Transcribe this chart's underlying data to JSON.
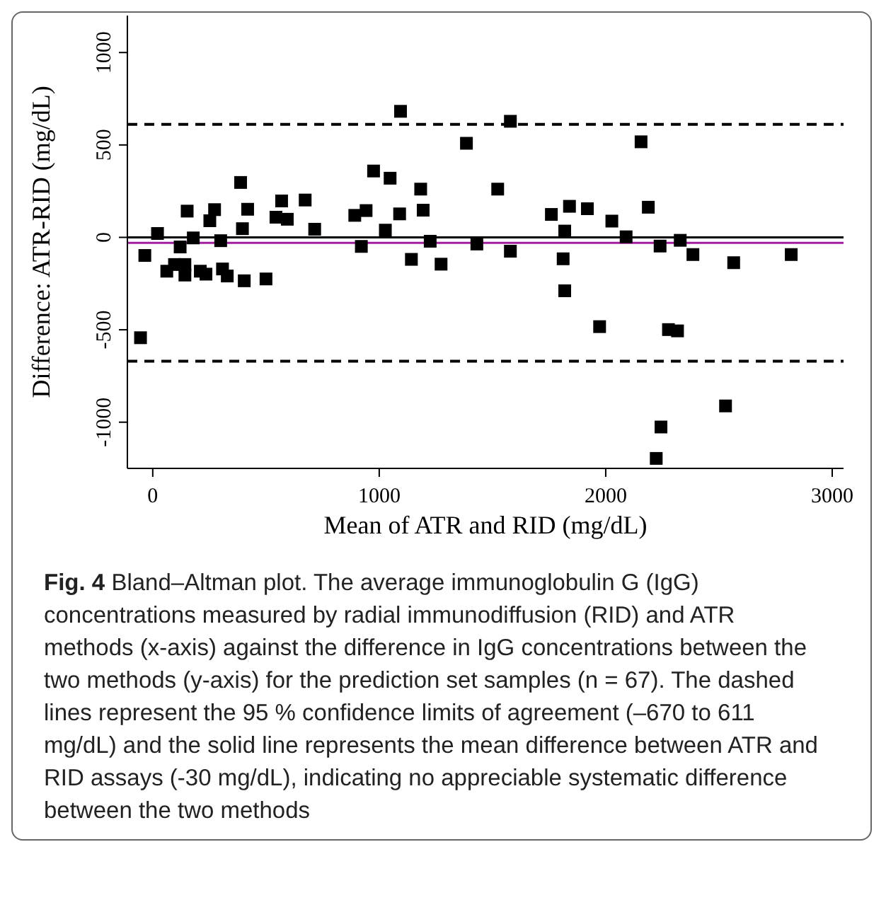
{
  "chart_data": {
    "type": "scatter",
    "xlabel": "Mean of ATR and RID (mg/dL)",
    "ylabel": "Difference: ATR-RID (mg/dL)",
    "xlim": [
      -112,
      3050
    ],
    "ylim": [
      -1250,
      1200
    ],
    "xticks": [
      0,
      1000,
      2000,
      3000
    ],
    "yticks": [
      -1000,
      -500,
      0,
      500,
      1000
    ],
    "marker": "square",
    "grid": false,
    "series": [
      {
        "color": "#000000",
        "x": [
          -54,
          -35,
          21,
          62,
          96,
          121,
          142,
          142,
          152,
          179,
          210,
          235,
          252,
          273,
          300,
          308,
          329,
          388,
          396,
          404,
          419,
          500,
          544,
          569,
          594,
          673,
          715,
          892,
          921,
          942,
          975,
          1027,
          1048,
          1090,
          1094,
          1142,
          1183,
          1194,
          1225,
          1273,
          1385,
          1431,
          1523,
          1579,
          1579,
          1760,
          1819,
          1812,
          1819,
          1840,
          1919,
          1973,
          2027,
          2090,
          2156,
          2188,
          2223,
          2240,
          2244,
          2277,
          2317,
          2329,
          2385,
          2529,
          2565,
          2819
        ],
        "values": [
          -543,
          -98,
          21,
          -183,
          -147,
          -52,
          -147,
          -204,
          142,
          -3,
          -183,
          -199,
          90,
          150,
          -18,
          -171,
          -209,
          297,
          47,
          -235,
          152,
          -225,
          109,
          197,
          98,
          202,
          44,
          119,
          -49,
          145,
          359,
          39,
          320,
          127,
          682,
          -119,
          261,
          147,
          -21,
          -145,
          509,
          -36,
          261,
          628,
          -75,
          124,
          34,
          -116,
          -289,
          168,
          155,
          -483,
          88,
          3,
          517,
          163,
          -1196,
          -47,
          -1026,
          -499,
          -506,
          -16,
          -93,
          -912,
          -137,
          -93
        ]
      }
    ],
    "ref_lines": [
      {
        "axis": "y",
        "value": 611,
        "color": "#000000",
        "line_style": "dashed"
      },
      {
        "axis": "y",
        "value": -670,
        "color": "#000000",
        "line_style": "dashed"
      },
      {
        "axis": "y",
        "value": 0,
        "color": "#000000",
        "line_style": "solid"
      },
      {
        "axis": "y",
        "value": -30,
        "color": "#a020a0",
        "line_style": "solid"
      }
    ],
    "annotations": [
      "Fig. 4",
      "Bland–Altman plot. The average immunoglobulin G (IgG) concentrations measured by radial immunodiffusion (RID) and ATR methods (x-axis) against the difference in IgG concentrations between the two methods (y-axis) for the prediction set samples (n = 67). The dashed lines represent the 95 % confidence limits of agreement (–670 to 611 mg/dL) and the solid line represents the mean difference between ATR and RID assays (-30 mg/dL), indicating no appreciable systematic difference between the two methods"
    ]
  }
}
